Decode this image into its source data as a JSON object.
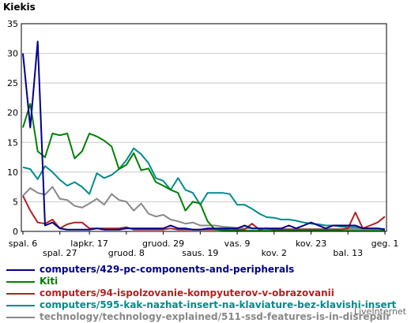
{
  "chart_data": {
    "type": "line",
    "title": "Kiekis",
    "ylim": [
      0,
      35
    ],
    "yticks": [
      0,
      5,
      10,
      15,
      20,
      25,
      30,
      35
    ],
    "grid": true,
    "legend_position": "bottom",
    "x_tick_labels_row1": [
      {
        "i": 0,
        "label": "spal. 6"
      },
      {
        "i": 9,
        "label": "lapkr. 17"
      },
      {
        "i": 19,
        "label": "gruod. 29"
      },
      {
        "i": 29,
        "label": "vas. 9"
      },
      {
        "i": 39,
        "label": "kov. 23"
      },
      {
        "i": 49,
        "label": "geg. 1"
      }
    ],
    "x_tick_labels_row2": [
      {
        "i": 5,
        "label": "spal. 27"
      },
      {
        "i": 14,
        "label": "gruod. 8"
      },
      {
        "i": 24,
        "label": "saus. 19"
      },
      {
        "i": 34,
        "label": "kov. 2"
      },
      {
        "i": 44,
        "label": "bal. 13"
      }
    ],
    "series": [
      {
        "name": "computers/429-pc-components-and-peripherals",
        "color": "#00008b",
        "values": [
          30,
          17.5,
          32,
          1,
          1.5,
          0.5,
          0.3,
          0.3,
          0.3,
          0.3,
          0.5,
          0.3,
          0.3,
          0.3,
          0.5,
          0.5,
          0.5,
          0.5,
          0.5,
          0.5,
          1,
          0.5,
          0.5,
          0.3,
          0.3,
          0.5,
          0.5,
          0.5,
          0.5,
          0.5,
          1,
          0.5,
          0.5,
          0.5,
          0.5,
          0.5,
          1,
          0.5,
          1,
          1.5,
          1,
          0.5,
          1,
          1,
          1,
          1,
          0.5,
          0.5,
          0.5,
          0.3
        ]
      },
      {
        "name": "Kiti",
        "color": "#008000",
        "values": [
          17.5,
          21.5,
          13.5,
          12.5,
          16.5,
          16.2,
          16.5,
          12.3,
          13.5,
          16.5,
          16,
          15.3,
          14.3,
          10.5,
          11.2,
          13.2,
          10.3,
          10.6,
          8.3,
          7.7,
          7,
          6.5,
          3.5,
          5,
          4.7,
          1.7,
          0.3,
          0.2,
          0.2,
          0.1,
          0.1,
          0.1,
          0.1,
          0.1,
          0.1,
          0.1,
          0.1,
          0.1,
          0.1,
          0.1,
          0.1,
          0.1,
          0.1,
          0.1,
          0.1,
          0.1,
          0.1,
          0.1,
          0.1,
          0.1
        ]
      },
      {
        "name": "computers/94-ispolzovanie-kompyuterov-v-obrazovanii",
        "color": "#b22222",
        "values": [
          6,
          3.5,
          1.5,
          1.3,
          2,
          0.5,
          1.2,
          1.5,
          1.5,
          0.5,
          0.5,
          0.5,
          0.5,
          0.5,
          0.7,
          0.3,
          0.3,
          0.3,
          0.3,
          0.3,
          0.5,
          0.3,
          0.3,
          0.3,
          0.3,
          0.3,
          0.3,
          0.3,
          0.5,
          0.3,
          0.3,
          1.3,
          0.3,
          0.5,
          0.3,
          0.3,
          0.3,
          0.3,
          0.3,
          0.3,
          0.3,
          0.3,
          0.3,
          0.3,
          0.5,
          3.2,
          0.5,
          1,
          1.5,
          2.5
        ]
      },
      {
        "name": "computers/595-kak-nazhat-insert-na-klaviature-bez-klavishi-insert",
        "color": "#008b8b",
        "values": [
          10.8,
          10.5,
          8.8,
          11,
          10,
          8.7,
          7.7,
          8.3,
          7.5,
          6.3,
          9.8,
          9,
          9.5,
          10.5,
          12,
          14,
          13,
          11.5,
          9,
          8.5,
          7,
          9,
          7,
          6.5,
          4.5,
          6.5,
          6.5,
          6.5,
          6.3,
          4.5,
          4.5,
          3.8,
          3,
          2.4,
          2.3,
          2,
          2,
          1.8,
          1.5,
          1.3,
          1.2,
          1,
          1,
          0.8,
          0.7,
          0.7,
          0.6,
          0.5,
          0.5,
          0.4
        ]
      },
      {
        "name": "technology/technology-explained/511-ssd-features-is-in-disrepair",
        "color": "#888888",
        "values": [
          6,
          7.3,
          6.5,
          6.2,
          7.5,
          5.5,
          5.3,
          4.3,
          4,
          4.7,
          5.5,
          4.5,
          6.3,
          5.3,
          5,
          3.5,
          4.7,
          3,
          2.5,
          2.8,
          2,
          1.7,
          1.3,
          1.5,
          1,
          1,
          1,
          0.8,
          0.7,
          0.6,
          0.5,
          0.5,
          0.5,
          0.4,
          0.4,
          0.4,
          0.4,
          0.4,
          0.4,
          0.4,
          0.4,
          0.4,
          0.4,
          0.4,
          0.4,
          0.4,
          0.4,
          0.4,
          0.4,
          0.4
        ]
      }
    ]
  },
  "watermark": "LiveInternet"
}
